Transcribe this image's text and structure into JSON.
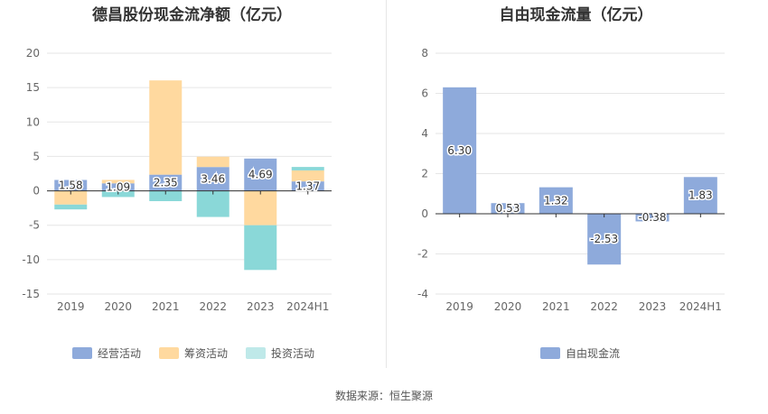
{
  "title_left": "德昌股份现金流净额（亿元）",
  "title_right": "自由现金流量（亿元）",
  "source": "数据来源：恒生聚源",
  "colors": {
    "operating": "#8eaadb",
    "financing": "#ffd99f",
    "investing": "#8ad8d8",
    "fcf": "#8eaadb"
  },
  "legend_left": [
    "经营活动",
    "筹资活动",
    "投资活动"
  ],
  "legend_right": [
    "自由现金流"
  ],
  "chart_data": [
    {
      "type": "bar",
      "stacked": true,
      "title": "德昌股份现金流净额（亿元）",
      "categories": [
        "2019",
        "2020",
        "2021",
        "2022",
        "2023",
        "2024H1"
      ],
      "ylim": [
        -15,
        20
      ],
      "yticks": [
        20,
        15,
        10,
        5,
        0,
        -5,
        -10,
        -15
      ],
      "grid": true,
      "legend_position": "bottom",
      "series": [
        {
          "name": "经营活动",
          "values": [
            1.58,
            1.09,
            2.35,
            3.46,
            4.69,
            1.37
          ]
        },
        {
          "name": "筹资活动",
          "values": [
            -2.0,
            0.5,
            13.7,
            1.5,
            -5.0,
            1.6
          ]
        },
        {
          "name": "投资活动",
          "values": [
            -0.7,
            -0.9,
            -1.5,
            -3.8,
            -6.5,
            0.5
          ]
        }
      ],
      "data_labels": [
        "1.58",
        "1.09",
        "2.35",
        "3.46",
        "4.69",
        "1.37"
      ]
    },
    {
      "type": "bar",
      "title": "自由现金流量（亿元）",
      "categories": [
        "2019",
        "2020",
        "2021",
        "2022",
        "2023",
        "2024H1"
      ],
      "ylim": [
        -4,
        8
      ],
      "yticks": [
        8,
        6,
        4,
        2,
        0,
        -2,
        -4
      ],
      "grid": true,
      "legend_position": "bottom",
      "series": [
        {
          "name": "自由现金流",
          "values": [
            6.3,
            0.53,
            1.32,
            -2.53,
            -0.38,
            1.83
          ]
        }
      ],
      "data_labels": [
        "6.30",
        "0.53",
        "1.32",
        "-2.53",
        "-0.38",
        "1.83"
      ]
    }
  ]
}
